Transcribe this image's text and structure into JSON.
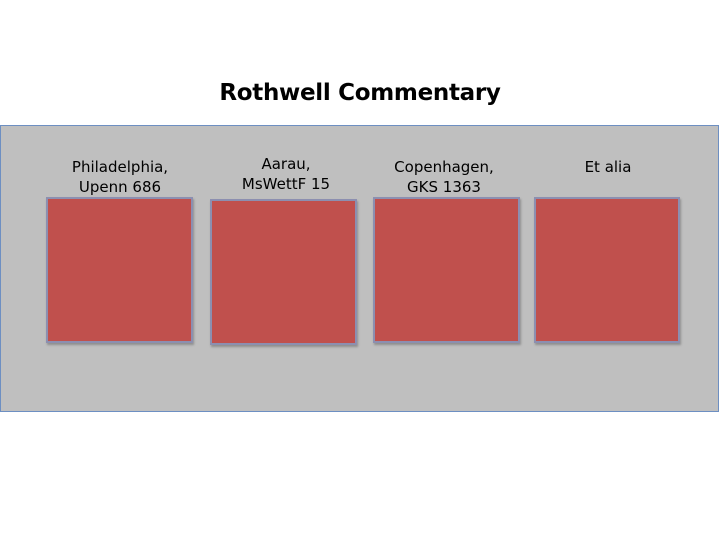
{
  "title": "Rothwell Commentary",
  "manuscripts": [
    {
      "line1": "Philadelphia,",
      "line2": "Upenn 686"
    },
    {
      "line1": "Aarau,",
      "line2": "MsWettF 15"
    },
    {
      "line1": "Copenhagen,",
      "line2": "GKS 1363"
    },
    {
      "line1": "",
      "line2": "Et alia"
    }
  ],
  "colors": {
    "box_fill": "#c0504d",
    "panel_fill": "#bfbfbf",
    "panel_border": "#6d8fc2"
  }
}
